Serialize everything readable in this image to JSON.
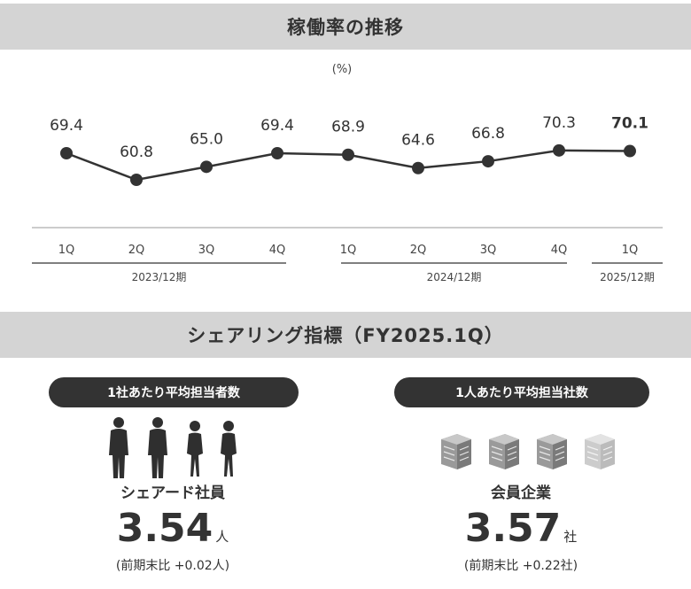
{
  "titles": {
    "utilization": "稼働率の推移",
    "sharing": "シェアリング指標（FY2025.1Q）"
  },
  "chart_data": {
    "type": "line",
    "ylabel": "(%)",
    "categories": [
      "1Q",
      "2Q",
      "3Q",
      "4Q",
      "1Q",
      "2Q",
      "3Q",
      "4Q",
      "1Q"
    ],
    "groups": [
      {
        "label": "2023/12期",
        "count": 4
      },
      {
        "label": "2024/12期",
        "count": 4
      },
      {
        "label": "2025/12期",
        "count": 1
      }
    ],
    "values": [
      69.4,
      60.8,
      65.0,
      69.4,
      68.9,
      64.6,
      66.8,
      70.3,
      70.1
    ],
    "value_labels": [
      "69.4",
      "60.8",
      "65.0",
      "69.4",
      "68.9",
      "64.6",
      "66.8",
      "70.3",
      "70.1"
    ],
    "highlight_last": true,
    "colors": {
      "line": "#333333",
      "axis": "#bbbbbb",
      "bracket": "#555555"
    }
  },
  "metrics": {
    "left": {
      "pill": "1社あたり平均担当者数",
      "icon": "business-people-icon",
      "label": "シェアード社員",
      "value": "3.54",
      "unit": "人",
      "comparison": "(前期末比 +0.02人)"
    },
    "right": {
      "pill": "1人あたり平均担当社数",
      "icon": "office-building-icon",
      "label": "会員企業",
      "value": "3.57",
      "unit": "社",
      "comparison": "(前期末比 +0.22社)"
    }
  },
  "colors": {
    "band": "#d4d4d4",
    "pill": "#333333",
    "text": "#333333"
  }
}
